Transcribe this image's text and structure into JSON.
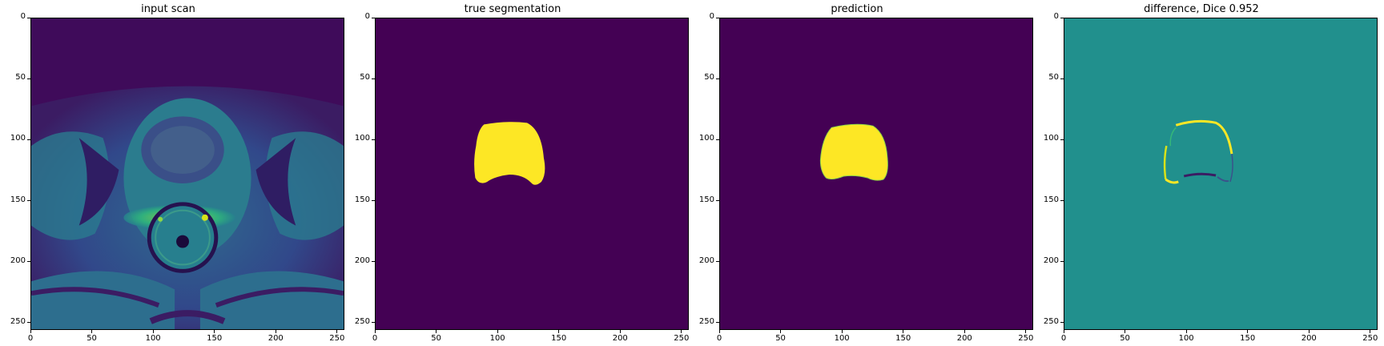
{
  "panels": [
    {
      "title": "input scan",
      "name": "input-scan"
    },
    {
      "title": "true segmentation",
      "name": "true-segmentation"
    },
    {
      "title": "prediction",
      "name": "prediction"
    },
    {
      "title": "difference, Dice 0.952",
      "name": "difference"
    }
  ],
  "axes": {
    "x_ticks": [
      "0",
      "50",
      "100",
      "150",
      "200",
      "250"
    ],
    "y_ticks": [
      "0",
      "50",
      "100",
      "150",
      "200",
      "250"
    ],
    "x_range": [
      0,
      256
    ],
    "y_range": [
      0,
      256
    ]
  },
  "colors": {
    "viridis_dark": "#440154",
    "viridis_mid": "#21908d",
    "viridis_bright": "#fde725",
    "viridis_teal": "#35b779",
    "viridis_blue": "#3b528b"
  }
}
